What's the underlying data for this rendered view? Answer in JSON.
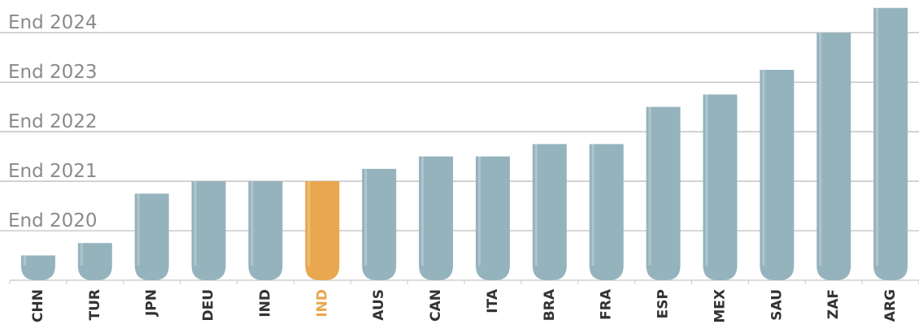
{
  "chart_data": {
    "type": "bar",
    "categories": [
      "CHN",
      "TUR",
      "JPN",
      "DEU",
      "IND",
      "IND",
      "AUS",
      "CAN",
      "ITA",
      "BRA",
      "FRA",
      "ESP",
      "MEX",
      "SAU",
      "ZAF",
      "ARG"
    ],
    "values": [
      2019.5,
      2019.75,
      2020.75,
      2021,
      2021,
      2021,
      2021.25,
      2021.5,
      2021.5,
      2021.75,
      2021.75,
      2022.5,
      2022.75,
      2023.25,
      2024,
      2024.5
    ],
    "colors": [
      "#95b3bd",
      "#95b3bd",
      "#95b3bd",
      "#95b3bd",
      "#95b3bd",
      "#e9a74f",
      "#95b3bd",
      "#95b3bd",
      "#95b3bd",
      "#95b3bd",
      "#95b3bd",
      "#95b3bd",
      "#95b3bd",
      "#95b3bd",
      "#95b3bd",
      "#95b3bd"
    ],
    "label_colors": [
      "#333333",
      "#333333",
      "#333333",
      "#333333",
      "#333333",
      "#e9a74f",
      "#333333",
      "#333333",
      "#333333",
      "#333333",
      "#333333",
      "#333333",
      "#333333",
      "#333333",
      "#333333",
      "#333333"
    ],
    "ylim": [
      2019,
      2024.66
    ],
    "yticks": [
      {
        "value": 2020,
        "label": "End 2020"
      },
      {
        "value": 2021,
        "label": "End 2021"
      },
      {
        "value": 2022,
        "label": "End 2022"
      },
      {
        "value": 2023,
        "label": "End 2023"
      },
      {
        "value": 2024,
        "label": "End 2024"
      }
    ],
    "grid": true
  }
}
